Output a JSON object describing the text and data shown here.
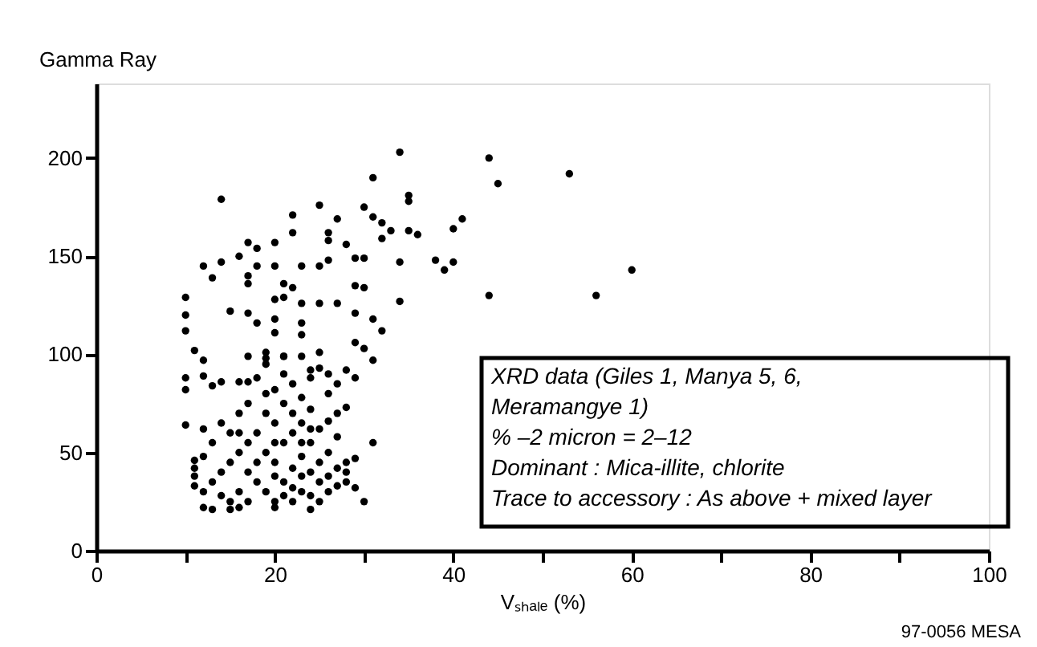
{
  "chart_data": {
    "type": "scatter",
    "xlabel": "Vₛₕₐₗₑ (%)",
    "ylabel": "Gamma Ray",
    "xlim": [
      0,
      100
    ],
    "ylim": [
      0,
      238
    ],
    "xticks": [
      0,
      {
        "value": 10,
        "label": null
      },
      20,
      {
        "value": 30,
        "label": null
      },
      40,
      {
        "value": 50,
        "label": null
      },
      60,
      {
        "value": 70,
        "label": null
      },
      80,
      {
        "value": 90,
        "label": null
      },
      100
    ],
    "yticks": [
      0,
      50,
      100,
      150,
      200
    ],
    "marker": "circle",
    "grid": false,
    "series": [
      {
        "color": "#000000",
        "x": [
          53,
          60,
          56,
          44,
          45,
          44,
          41,
          40,
          40,
          39,
          38,
          36,
          35,
          35,
          35,
          34,
          34,
          31,
          31,
          30,
          32,
          33,
          32,
          30,
          29,
          28,
          27,
          25,
          22,
          22,
          26,
          26,
          26,
          25,
          23,
          20,
          18,
          17,
          16,
          14,
          12,
          13,
          14,
          20,
          18,
          17,
          17,
          21,
          22,
          21,
          20,
          23,
          25,
          27,
          29,
          30,
          29,
          31,
          32,
          10,
          10,
          10,
          11,
          12,
          10,
          10,
          12,
          13,
          10,
          15,
          17,
          18,
          20,
          20,
          23,
          23,
          14,
          16,
          17,
          17,
          19,
          21,
          23,
          25,
          25,
          28,
          29,
          30,
          31,
          29,
          31,
          28,
          29,
          30,
          29,
          11,
          11,
          12,
          13,
          15,
          16,
          20,
          24,
          13,
          14,
          15,
          15,
          14,
          13,
          16,
          17,
          16,
          17,
          18,
          18,
          18,
          19,
          19,
          19,
          19,
          19,
          20,
          20,
          20,
          20,
          21,
          21,
          21,
          21,
          21,
          22,
          22,
          22,
          22,
          22,
          23,
          23,
          23,
          23,
          23,
          24,
          24,
          24,
          24,
          24,
          25,
          25,
          25,
          25,
          26,
          26,
          26,
          26,
          26,
          27,
          27,
          27,
          27,
          28,
          28,
          28,
          12,
          11,
          12,
          14,
          15,
          16,
          17,
          18,
          16,
          20,
          19,
          21,
          20,
          22,
          24,
          23,
          12,
          11,
          17,
          26,
          27,
          24,
          34
        ],
        "values": [
          192,
          143,
          130,
          130,
          187,
          200,
          169,
          164,
          147,
          143,
          148,
          161,
          163,
          181,
          178,
          147,
          127,
          190,
          170,
          175,
          167,
          163,
          159,
          149,
          149,
          156,
          169,
          176,
          171,
          162,
          162,
          158,
          148,
          145,
          145,
          157,
          154,
          157,
          150,
          147,
          145,
          139,
          179,
          145,
          145,
          140,
          136,
          136,
          134,
          129,
          128,
          126,
          126,
          126,
          135,
          134,
          121,
          118,
          112,
          129,
          120,
          112,
          102,
          97,
          88,
          82,
          89,
          84,
          64,
          122,
          121,
          116,
          118,
          111,
          116,
          110,
          86,
          86,
          86,
          99,
          101,
          99,
          99,
          101,
          93,
          92,
          106,
          103,
          97,
          88,
          55,
          73,
          47,
          25,
          32,
          42,
          33,
          22,
          21,
          21,
          22,
          22,
          21,
          55,
          65,
          60,
          45,
          40,
          35,
          70,
          75,
          50,
          40,
          60,
          35,
          88,
          95,
          80,
          70,
          50,
          30,
          65,
          45,
          38,
          25,
          90,
          75,
          55,
          35,
          28,
          85,
          60,
          42,
          32,
          25,
          78,
          65,
          48,
          38,
          30,
          88,
          72,
          55,
          40,
          28,
          62,
          45,
          35,
          25,
          80,
          66,
          50,
          38,
          30,
          85,
          58,
          42,
          33,
          45,
          40,
          35,
          48,
          38,
          30,
          28,
          25,
          30,
          55,
          45,
          60,
          55,
          98,
          99,
          82,
          70,
          62,
          55,
          62,
          46,
          25,
          90,
          70,
          92,
          203
        ]
      }
    ],
    "annotations": [
      "XRD data (Giles 1, Manya 5, 6,",
      "Meramangye 1)",
      "% –2 micron = 2–12",
      "Dominant : Mica-illite, chlorite",
      "Trace to accessory : As above + mixed layer",
      "97-0056 MESA"
    ]
  }
}
